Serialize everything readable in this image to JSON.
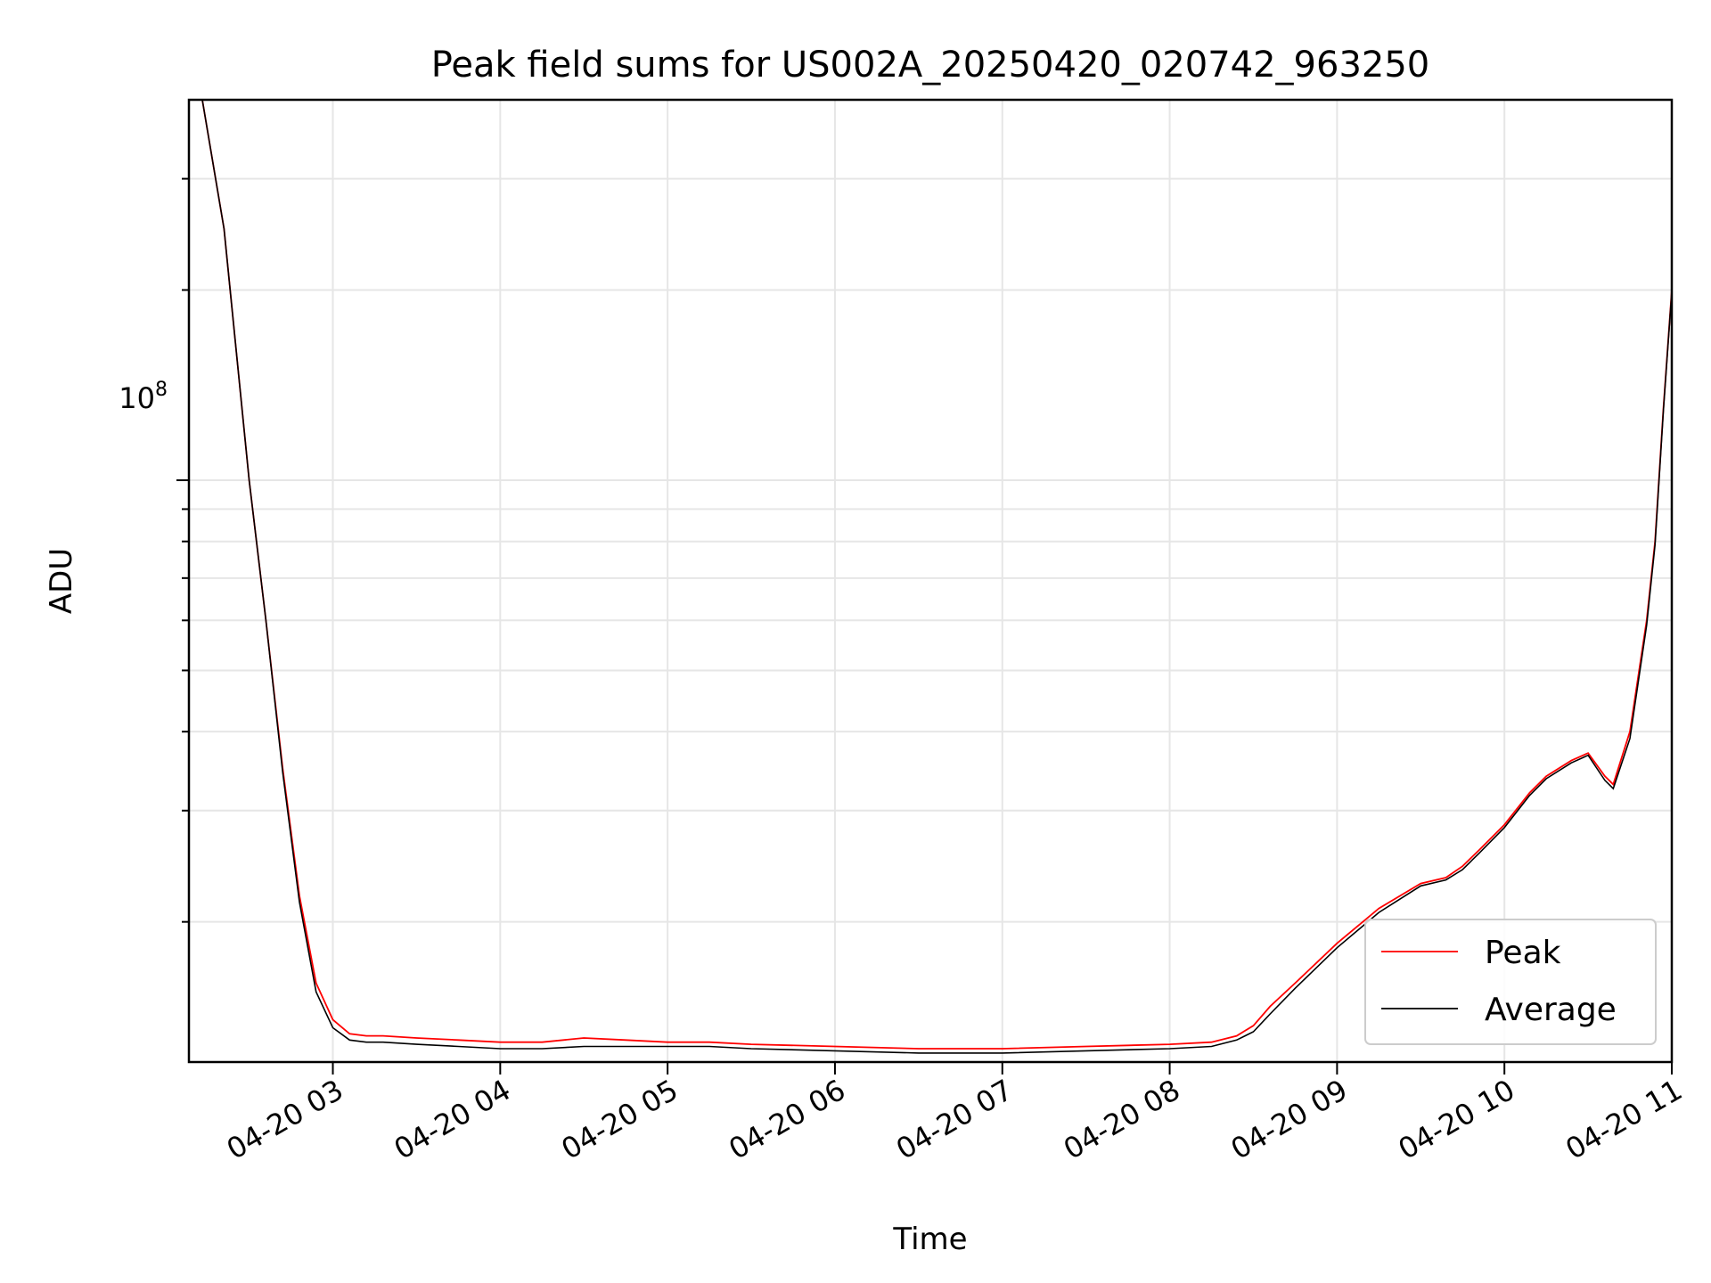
{
  "chart_data": {
    "type": "line",
    "title": "Peak field sums for US002A_20250420_020742_963250",
    "xlabel": "Time",
    "ylabel": "ADU",
    "x_tick_labels": [
      "04-20 03",
      "04-20 04",
      "04-20 05",
      "04-20 06",
      "04-20 07",
      "04-20 08",
      "04-20 09",
      "04-20 10",
      "04-20 11"
    ],
    "y_tick_label": {
      "base": "10",
      "exponent": "8"
    },
    "y_scale": "log",
    "ylim": [
      12000000,
      400000000
    ],
    "xlim_hours": [
      2.14,
      11.0
    ],
    "grid": true,
    "legend_position": "lower-right",
    "series": [
      {
        "name": "Peak",
        "color": "#ff0000",
        "x_hours": [
          2.14,
          2.22,
          2.35,
          2.5,
          2.6,
          2.7,
          2.8,
          2.9,
          3.0,
          3.1,
          3.2,
          3.3,
          3.5,
          3.75,
          4.0,
          4.25,
          4.5,
          4.75,
          5.0,
          5.25,
          5.5,
          6.0,
          6.5,
          7.0,
          7.5,
          8.0,
          8.25,
          8.4,
          8.5,
          8.6,
          8.75,
          9.0,
          9.25,
          9.5,
          9.65,
          9.75,
          9.85,
          10.0,
          10.15,
          10.25,
          10.4,
          10.5,
          10.6,
          10.65,
          10.75,
          10.85,
          10.9,
          10.95,
          11.0
        ],
        "values": [
          400000000,
          400000000,
          250000000,
          100000000,
          60000000,
          35000000,
          22000000,
          16000000,
          14000000,
          13300000,
          13200000,
          13200000,
          13100000,
          13000000,
          12900000,
          12900000,
          13100000,
          13000000,
          12900000,
          12900000,
          12800000,
          12700000,
          12600000,
          12600000,
          12700000,
          12800000,
          12900000,
          13200000,
          13700000,
          14700000,
          16000000,
          18500000,
          21000000,
          23000000,
          23500000,
          24500000,
          26000000,
          28500000,
          32000000,
          34000000,
          36000000,
          37000000,
          34000000,
          33000000,
          40000000,
          60000000,
          80000000,
          130000000,
          200000000
        ]
      },
      {
        "name": "Average",
        "color": "#000000",
        "x_hours": [
          2.14,
          2.22,
          2.35,
          2.5,
          2.6,
          2.7,
          2.8,
          2.9,
          3.0,
          3.1,
          3.2,
          3.3,
          3.5,
          3.75,
          4.0,
          4.25,
          4.5,
          4.75,
          5.0,
          5.25,
          5.5,
          6.0,
          6.5,
          7.0,
          7.5,
          8.0,
          8.25,
          8.4,
          8.5,
          8.6,
          8.75,
          9.0,
          9.25,
          9.5,
          9.65,
          9.75,
          9.85,
          10.0,
          10.15,
          10.25,
          10.4,
          10.5,
          10.6,
          10.65,
          10.75,
          10.85,
          10.9,
          10.95,
          11.0
        ],
        "values": [
          400000000,
          400000000,
          250000000,
          100000000,
          60000000,
          34500000,
          21500000,
          15500000,
          13600000,
          13000000,
          12900000,
          12900000,
          12800000,
          12700000,
          12600000,
          12600000,
          12700000,
          12700000,
          12700000,
          12700000,
          12600000,
          12500000,
          12400000,
          12400000,
          12500000,
          12600000,
          12700000,
          13000000,
          13400000,
          14300000,
          15700000,
          18200000,
          20700000,
          22800000,
          23300000,
          24200000,
          25700000,
          28200000,
          31700000,
          33700000,
          35700000,
          36700000,
          33500000,
          32500000,
          39000000,
          59000000,
          79000000,
          129000000,
          199000000
        ]
      }
    ]
  }
}
